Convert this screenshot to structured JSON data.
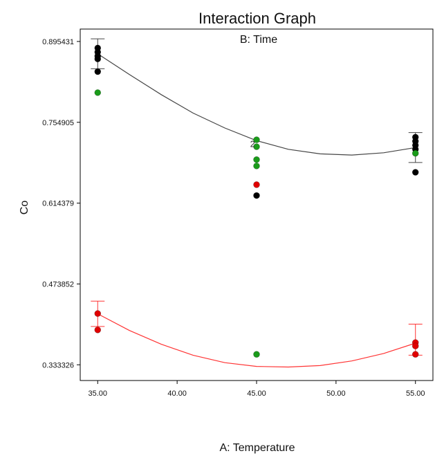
{
  "chart_data": {
    "type": "scatter",
    "title": "Interaction Graph",
    "subtitle": "B: Time",
    "xlabel": "A: Temperature",
    "ylabel": "Co",
    "xlim": [
      33.9,
      56.1
    ],
    "ylim": [
      0.306,
      0.917
    ],
    "x_ticks": [
      "35.00",
      "40.00",
      "45.00",
      "50.00",
      "55.00"
    ],
    "x_tick_values": [
      35,
      40,
      45,
      50,
      55
    ],
    "y_ticks": [
      "0.333326",
      "0.473852",
      "0.614379",
      "0.754905",
      "0.895431"
    ],
    "y_tick_values": [
      0.333326,
      0.473852,
      0.614379,
      0.754905,
      0.895431
    ],
    "grid": false,
    "annotation": {
      "text": "2",
      "x": 44.75,
      "y": 0.7165
    },
    "series": [
      {
        "color": "#000000",
        "curve_color": "#444444",
        "fit_curve": [
          [
            35,
            0.874
          ],
          [
            37,
            0.838
          ],
          [
            39,
            0.803
          ],
          [
            41,
            0.771
          ],
          [
            43,
            0.745
          ],
          [
            45,
            0.723
          ],
          [
            47,
            0.708
          ],
          [
            49,
            0.7
          ],
          [
            51,
            0.698
          ],
          [
            53,
            0.702
          ],
          [
            55,
            0.711
          ]
        ],
        "error_bars": [
          {
            "x": 35,
            "low": 0.848,
            "high": 0.9
          },
          {
            "x": 55,
            "low": 0.685,
            "high": 0.737
          }
        ],
        "points": [
          [
            35,
            0.884
          ],
          [
            35,
            0.877
          ],
          [
            35,
            0.87
          ],
          [
            35,
            0.865
          ],
          [
            35,
            0.843
          ],
          [
            45,
            0.6276
          ],
          [
            55,
            0.729
          ],
          [
            55,
            0.722
          ],
          [
            55,
            0.715
          ],
          [
            55,
            0.708
          ],
          [
            55,
            0.668
          ]
        ]
      },
      {
        "color": "#e00000",
        "curve_color": "#ff3333",
        "fit_curve": [
          [
            35,
            0.422
          ],
          [
            37,
            0.393
          ],
          [
            39,
            0.369
          ],
          [
            41,
            0.35
          ],
          [
            43,
            0.337
          ],
          [
            45,
            0.3305
          ],
          [
            47,
            0.3295
          ],
          [
            49,
            0.332
          ],
          [
            51,
            0.34
          ],
          [
            53,
            0.353
          ],
          [
            55,
            0.371
          ]
        ],
        "error_bars": [
          {
            "x": 35,
            "low": 0.4,
            "high": 0.444
          },
          {
            "x": 55,
            "low": 0.35,
            "high": 0.404
          }
        ],
        "points": [
          [
            35,
            0.4225
          ],
          [
            35,
            0.394
          ],
          [
            45,
            0.6465
          ],
          [
            55,
            0.372
          ],
          [
            55,
            0.366
          ],
          [
            55,
            0.3515
          ]
        ]
      },
      {
        "color": "#1a9b1a",
        "points": [
          [
            35,
            0.8065
          ],
          [
            45,
            0.7245
          ],
          [
            45,
            0.7125
          ],
          [
            45,
            0.69
          ],
          [
            45,
            0.679
          ],
          [
            45,
            0.3515
          ],
          [
            55,
            0.701
          ]
        ]
      }
    ]
  }
}
